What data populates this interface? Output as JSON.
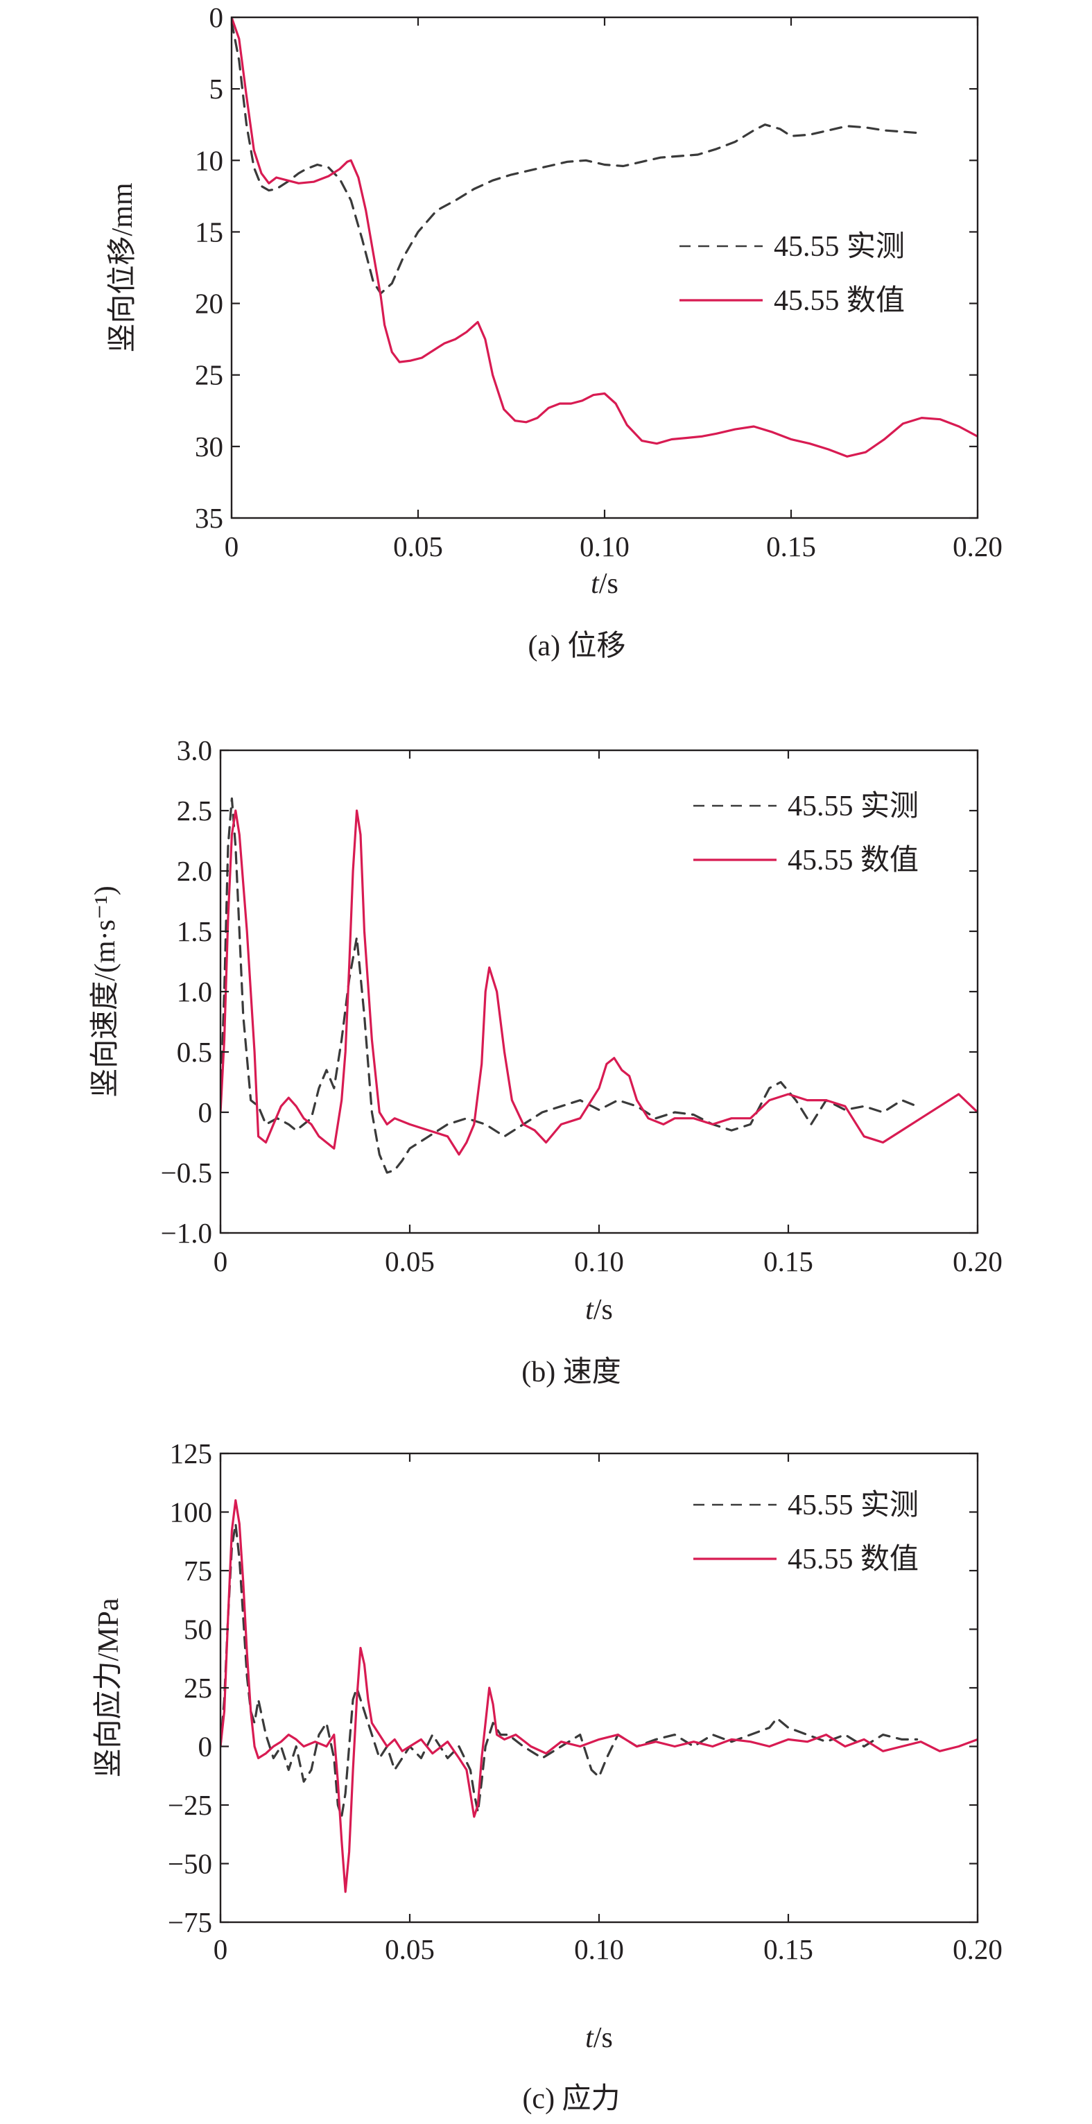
{
  "colors": {
    "measured": "#3a3a3a",
    "numerical": "#d81b52",
    "axis": "#231f20"
  },
  "chart_data": [
    {
      "type": "line",
      "caption": "(a) 位移",
      "xlabel_italic": "t",
      "xlabel_rest": "/s",
      "ylabel": "竖向位移/mm",
      "xlim": [
        0,
        0.2
      ],
      "ylim": [
        0,
        35
      ],
      "y_inverted": true,
      "x_ticks": [
        0,
        0.05,
        0.1,
        0.15,
        0.2
      ],
      "x_tick_labels": [
        "0",
        "0.05",
        "0.10",
        "0.15",
        "0.20"
      ],
      "y_ticks": [
        0,
        5,
        10,
        15,
        20,
        25,
        30,
        35
      ],
      "y_tick_labels": [
        "0",
        "5",
        "10",
        "15",
        "20",
        "25",
        "30",
        "35"
      ],
      "legend_position": "right",
      "series": [
        {
          "name": "45.55 实测",
          "style": "dashed",
          "x": [
            0,
            0.002,
            0.004,
            0.006,
            0.008,
            0.01,
            0.012,
            0.015,
            0.018,
            0.02,
            0.023,
            0.026,
            0.029,
            0.032,
            0.035,
            0.038,
            0.04,
            0.043,
            0.046,
            0.05,
            0.055,
            0.06,
            0.065,
            0.07,
            0.075,
            0.08,
            0.085,
            0.09,
            0.095,
            0.1,
            0.105,
            0.11,
            0.115,
            0.12,
            0.125,
            0.13,
            0.135,
            0.14,
            0.143,
            0.147,
            0.15,
            0.155,
            0.16,
            0.165,
            0.17,
            0.175,
            0.18,
            0.185
          ],
          "y": [
            0.3,
            3.0,
            7.5,
            10.5,
            11.8,
            12.1,
            12.0,
            11.5,
            10.9,
            10.6,
            10.3,
            10.5,
            11.3,
            12.8,
            15.5,
            18.5,
            19.3,
            18.6,
            16.8,
            15.0,
            13.5,
            12.8,
            12.0,
            11.4,
            11.0,
            10.7,
            10.4,
            10.1,
            10.0,
            10.3,
            10.4,
            10.1,
            9.8,
            9.7,
            9.6,
            9.2,
            8.7,
            7.9,
            7.5,
            7.8,
            8.3,
            8.2,
            7.9,
            7.6,
            7.7,
            7.9,
            8.0,
            8.1
          ]
        },
        {
          "name": "45.55 数值",
          "style": "solid",
          "x": [
            0,
            0.002,
            0.004,
            0.006,
            0.008,
            0.01,
            0.012,
            0.015,
            0.018,
            0.022,
            0.026,
            0.029,
            0.031,
            0.032,
            0.034,
            0.036,
            0.038,
            0.04,
            0.041,
            0.043,
            0.045,
            0.048,
            0.051,
            0.054,
            0.057,
            0.06,
            0.063,
            0.066,
            0.068,
            0.07,
            0.073,
            0.076,
            0.079,
            0.082,
            0.085,
            0.088,
            0.091,
            0.094,
            0.097,
            0.1,
            0.103,
            0.106,
            0.11,
            0.114,
            0.118,
            0.122,
            0.126,
            0.13,
            0.135,
            0.14,
            0.145,
            0.15,
            0.155,
            0.16,
            0.165,
            0.17,
            0.175,
            0.18,
            0.185,
            0.19,
            0.195,
            0.2
          ],
          "y": [
            0,
            1.5,
            5.5,
            9.3,
            10.9,
            11.6,
            11.2,
            11.4,
            11.6,
            11.5,
            11.1,
            10.6,
            10.1,
            10.0,
            11.2,
            13.5,
            16.5,
            19.5,
            21.5,
            23.4,
            24.1,
            24.0,
            23.8,
            23.3,
            22.8,
            22.5,
            22.0,
            21.3,
            22.5,
            25.0,
            27.4,
            28.2,
            28.3,
            28.0,
            27.3,
            27.0,
            27.0,
            26.8,
            26.4,
            26.3,
            27.0,
            28.5,
            29.6,
            29.8,
            29.5,
            29.4,
            29.3,
            29.1,
            28.8,
            28.6,
            29.0,
            29.5,
            29.8,
            30.2,
            30.7,
            30.4,
            29.5,
            28.4,
            28.0,
            28.1,
            28.6,
            29.3
          ]
        }
      ]
    },
    {
      "type": "line",
      "caption": "(b) 速度",
      "xlabel_italic": "t",
      "xlabel_rest": "/s",
      "ylabel": "竖向速度/(m·s⁻¹)",
      "xlim": [
        0,
        0.2
      ],
      "ylim": [
        -1.0,
        3.0
      ],
      "y_inverted": false,
      "x_ticks": [
        0,
        0.05,
        0.1,
        0.15,
        0.2
      ],
      "x_tick_labels": [
        "0",
        "0.05",
        "0.10",
        "0.15",
        "0.20"
      ],
      "y_ticks": [
        -1.0,
        -0.5,
        0,
        0.5,
        1.0,
        1.5,
        2.0,
        2.5,
        3.0
      ],
      "y_tick_labels": [
        "−1.0",
        "−0.5",
        "0",
        "0.5",
        "1.0",
        "1.5",
        "2.0",
        "2.5",
        "3.0"
      ],
      "legend_position": "top-right",
      "series": [
        {
          "name": "45.55 实测",
          "style": "dashed",
          "x": [
            0,
            0.001,
            0.002,
            0.003,
            0.004,
            0.006,
            0.008,
            0.01,
            0.012,
            0.015,
            0.018,
            0.02,
            0.022,
            0.024,
            0.026,
            0.028,
            0.03,
            0.032,
            0.034,
            0.036,
            0.038,
            0.04,
            0.042,
            0.044,
            0.046,
            0.048,
            0.05,
            0.055,
            0.06,
            0.065,
            0.07,
            0.075,
            0.08,
            0.085,
            0.09,
            0.095,
            0.1,
            0.105,
            0.11,
            0.115,
            0.12,
            0.125,
            0.13,
            0.135,
            0.14,
            0.145,
            0.148,
            0.152,
            0.156,
            0.16,
            0.165,
            0.17,
            0.175,
            0.18,
            0.184
          ],
          "y": [
            0.1,
            1.0,
            2.2,
            2.6,
            2.2,
            0.8,
            0.1,
            0.05,
            -0.1,
            -0.05,
            -0.1,
            -0.15,
            -0.1,
            -0.05,
            0.2,
            0.35,
            0.2,
            0.6,
            1.1,
            1.45,
            0.8,
            0.0,
            -0.35,
            -0.5,
            -0.48,
            -0.4,
            -0.3,
            -0.2,
            -0.1,
            -0.05,
            -0.1,
            -0.2,
            -0.1,
            0.0,
            0.05,
            0.1,
            0.02,
            0.1,
            0.05,
            -0.05,
            0.0,
            -0.02,
            -0.1,
            -0.15,
            -0.1,
            0.2,
            0.25,
            0.1,
            -0.1,
            0.1,
            0.02,
            0.05,
            0.0,
            0.1,
            0.05
          ]
        },
        {
          "name": "45.55 数值",
          "style": "solid",
          "x": [
            0,
            0.001,
            0.002,
            0.003,
            0.004,
            0.005,
            0.007,
            0.009,
            0.01,
            0.012,
            0.014,
            0.016,
            0.018,
            0.02,
            0.022,
            0.024,
            0.026,
            0.028,
            0.03,
            0.032,
            0.033,
            0.034,
            0.035,
            0.036,
            0.037,
            0.038,
            0.04,
            0.042,
            0.044,
            0.046,
            0.05,
            0.055,
            0.06,
            0.063,
            0.065,
            0.067,
            0.069,
            0.07,
            0.071,
            0.073,
            0.075,
            0.077,
            0.08,
            0.083,
            0.086,
            0.09,
            0.095,
            0.1,
            0.102,
            0.104,
            0.106,
            0.108,
            0.11,
            0.113,
            0.117,
            0.12,
            0.125,
            0.13,
            0.135,
            0.14,
            0.145,
            0.15,
            0.155,
            0.16,
            0.165,
            0.17,
            0.175,
            0.18,
            0.185,
            0.19,
            0.195,
            0.2
          ],
          "y": [
            0.0,
            0.6,
            1.6,
            2.3,
            2.5,
            2.3,
            1.5,
            0.5,
            -0.2,
            -0.25,
            -0.1,
            0.05,
            0.12,
            0.05,
            -0.05,
            -0.1,
            -0.2,
            -0.25,
            -0.3,
            0.1,
            0.5,
            1.2,
            2.0,
            2.5,
            2.3,
            1.5,
            0.6,
            0.0,
            -0.1,
            -0.05,
            -0.1,
            -0.15,
            -0.2,
            -0.35,
            -0.25,
            -0.1,
            0.4,
            1.0,
            1.2,
            1.0,
            0.5,
            0.1,
            -0.1,
            -0.15,
            -0.25,
            -0.1,
            -0.05,
            0.2,
            0.4,
            0.45,
            0.35,
            0.3,
            0.1,
            -0.05,
            -0.1,
            -0.05,
            -0.05,
            -0.1,
            -0.05,
            -0.05,
            0.1,
            0.15,
            0.1,
            0.1,
            0.05,
            -0.2,
            -0.25,
            -0.15,
            -0.05,
            0.05,
            0.15,
            0.0
          ]
        }
      ]
    },
    {
      "type": "line",
      "caption": "(c) 应力",
      "xlabel_italic": "t",
      "xlabel_rest": "/s",
      "ylabel": "竖向应力/MPa",
      "xlim": [
        0,
        0.2
      ],
      "ylim": [
        -75,
        125
      ],
      "y_inverted": false,
      "x_ticks": [
        0,
        0.05,
        0.1,
        0.15,
        0.2
      ],
      "x_tick_labels": [
        "0",
        "0.05",
        "0.10",
        "0.15",
        "0.20"
      ],
      "y_ticks": [
        -75,
        -50,
        -25,
        0,
        25,
        50,
        75,
        100,
        125
      ],
      "y_tick_labels": [
        "−75",
        "−50",
        "−25",
        "0",
        "25",
        "50",
        "75",
        "100",
        "125"
      ],
      "legend_position": "top-right",
      "series": [
        {
          "name": "45.55 实测",
          "style": "dashed",
          "x": [
            0,
            0.001,
            0.002,
            0.003,
            0.004,
            0.005,
            0.006,
            0.007,
            0.008,
            0.009,
            0.01,
            0.012,
            0.014,
            0.016,
            0.018,
            0.02,
            0.022,
            0.024,
            0.026,
            0.028,
            0.03,
            0.031,
            0.032,
            0.033,
            0.034,
            0.035,
            0.036,
            0.037,
            0.038,
            0.039,
            0.04,
            0.042,
            0.044,
            0.046,
            0.048,
            0.05,
            0.053,
            0.056,
            0.06,
            0.063,
            0.066,
            0.067,
            0.068,
            0.069,
            0.07,
            0.072,
            0.074,
            0.076,
            0.08,
            0.085,
            0.09,
            0.095,
            0.098,
            0.1,
            0.102,
            0.105,
            0.11,
            0.115,
            0.12,
            0.125,
            0.13,
            0.135,
            0.14,
            0.145,
            0.147,
            0.15,
            0.155,
            0.16,
            0.165,
            0.17,
            0.175,
            0.18,
            0.184
          ],
          "y": [
            0,
            20,
            55,
            85,
            95,
            80,
            55,
            30,
            15,
            10,
            20,
            5,
            -5,
            0,
            -10,
            0,
            -15,
            -10,
            5,
            10,
            -5,
            -25,
            -30,
            -20,
            0,
            20,
            25,
            20,
            15,
            10,
            5,
            -5,
            0,
            -10,
            -5,
            0,
            -5,
            5,
            -5,
            0,
            -10,
            -20,
            -28,
            -15,
            0,
            10,
            5,
            5,
            0,
            -5,
            0,
            5,
            -10,
            -13,
            -5,
            5,
            0,
            3,
            5,
            0,
            5,
            2,
            5,
            8,
            12,
            8,
            5,
            2,
            5,
            0,
            5,
            3,
            3
          ]
        },
        {
          "name": "45.55 数值",
          "style": "solid",
          "x": [
            0,
            0.001,
            0.002,
            0.003,
            0.004,
            0.005,
            0.006,
            0.007,
            0.008,
            0.009,
            0.01,
            0.012,
            0.014,
            0.016,
            0.018,
            0.02,
            0.022,
            0.025,
            0.028,
            0.03,
            0.031,
            0.032,
            0.033,
            0.034,
            0.035,
            0.036,
            0.037,
            0.038,
            0.039,
            0.04,
            0.042,
            0.044,
            0.046,
            0.048,
            0.05,
            0.053,
            0.056,
            0.06,
            0.063,
            0.065,
            0.066,
            0.067,
            0.068,
            0.069,
            0.07,
            0.071,
            0.072,
            0.073,
            0.075,
            0.078,
            0.082,
            0.086,
            0.09,
            0.095,
            0.1,
            0.105,
            0.11,
            0.115,
            0.12,
            0.125,
            0.13,
            0.135,
            0.14,
            0.145,
            0.15,
            0.155,
            0.16,
            0.165,
            0.17,
            0.175,
            0.18,
            0.185,
            0.19,
            0.195,
            0.2
          ],
          "y": [
            0,
            15,
            55,
            92,
            105,
            95,
            70,
            40,
            15,
            0,
            -5,
            -3,
            0,
            2,
            5,
            3,
            0,
            2,
            0,
            5,
            -15,
            -40,
            -62,
            -45,
            -10,
            20,
            42,
            35,
            20,
            10,
            5,
            0,
            3,
            -2,
            0,
            3,
            -3,
            2,
            -5,
            -10,
            -20,
            -30,
            -25,
            -5,
            10,
            25,
            18,
            5,
            3,
            5,
            0,
            -3,
            2,
            0,
            3,
            5,
            0,
            2,
            0,
            2,
            0,
            3,
            2,
            0,
            3,
            2,
            5,
            0,
            3,
            -2,
            0,
            2,
            -2,
            0,
            3
          ]
        }
      ]
    }
  ]
}
